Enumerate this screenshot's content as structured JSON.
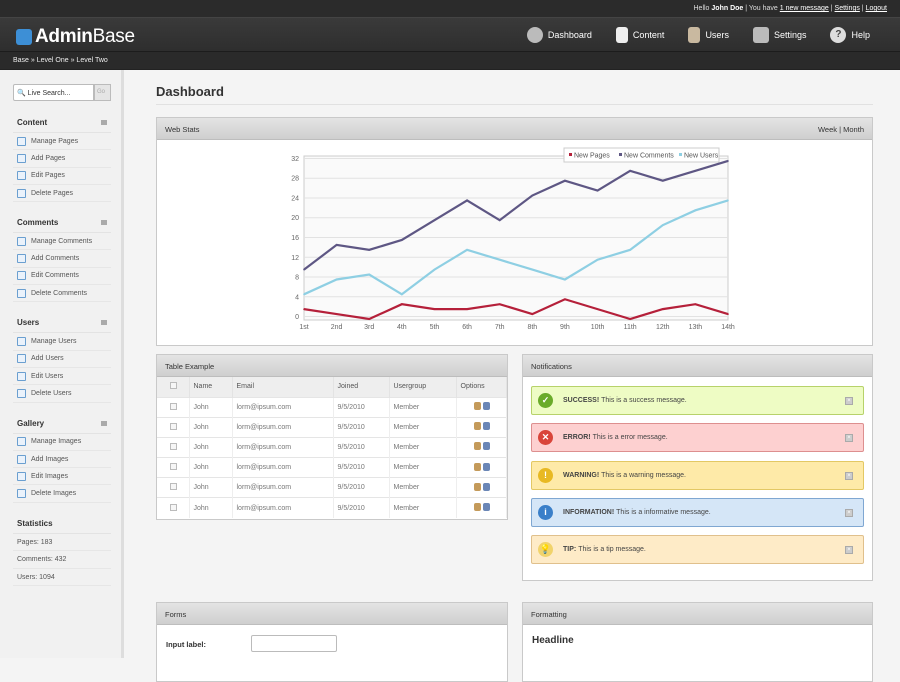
{
  "topbar": {
    "hello": "Hello",
    "user": "John Doe",
    "you_have": "| You have",
    "messages": "1 new message",
    "settings": "Settings",
    "logout": "Logout",
    "sep": "|"
  },
  "logo": {
    "bold": "Admin",
    "rest": "Base"
  },
  "nav": [
    {
      "label": "Dashboard",
      "icon": "gear-icon"
    },
    {
      "label": "Content",
      "icon": "document-icon"
    },
    {
      "label": "Users",
      "icon": "user-icon"
    },
    {
      "label": "Settings",
      "icon": "settings-icon"
    },
    {
      "label": "Help",
      "icon": "help-icon"
    }
  ],
  "breadcrumb": "Base » Level One » Level Two",
  "sidebar": {
    "search": {
      "placeholder": "Live Search...",
      "go": "Go"
    },
    "groups": [
      {
        "title": "Content",
        "items": [
          "Manage Pages",
          "Add Pages",
          "Edit Pages",
          "Delete Pages"
        ]
      },
      {
        "title": "Comments",
        "items": [
          "Manage Comments",
          "Add Comments",
          "Edit Comments",
          "Delete Comments"
        ]
      },
      {
        "title": "Users",
        "items": [
          "Manage Users",
          "Add Users",
          "Edit Users",
          "Delete Users"
        ]
      },
      {
        "title": "Gallery",
        "items": [
          "Manage Images",
          "Add Images",
          "Edit Images",
          "Delete Images"
        ]
      }
    ],
    "statistics": {
      "title": "Statistics",
      "items": [
        "Pages: 183",
        "Comments: 432",
        "Users: 1094"
      ]
    }
  },
  "page_title": "Dashboard",
  "webstats": {
    "title": "Web Stats",
    "week": "Week",
    "month": "Month",
    "sep": "|"
  },
  "chart_data": {
    "type": "line",
    "categories": [
      "1st",
      "2nd",
      "3rd",
      "4th",
      "5th",
      "6th",
      "7th",
      "8th",
      "9th",
      "10th",
      "11th",
      "12th",
      "13th",
      "14th"
    ],
    "series": [
      {
        "name": "New Pages",
        "color": "#b5203a",
        "values": [
          1.5,
          0.5,
          -0.5,
          2.5,
          1.5,
          1.5,
          2.5,
          0.5,
          3.5,
          1.5,
          -0.5,
          1.5,
          2.5,
          0.5
        ]
      },
      {
        "name": "New Comments",
        "color": "#5e5784",
        "values": [
          9.5,
          14.5,
          13.5,
          15.5,
          19.5,
          23.5,
          19.5,
          24.5,
          27.5,
          25.5,
          29.5,
          27.5,
          29.5,
          31.5
        ]
      },
      {
        "name": "New Users",
        "color": "#8ecfe3",
        "values": [
          4.5,
          7.5,
          8.5,
          4.5,
          9.5,
          13.5,
          11.5,
          9.5,
          7.5,
          11.5,
          13.5,
          18.5,
          21.5,
          23.5
        ]
      }
    ],
    "yticks": [
      0,
      4,
      8,
      12,
      16,
      20,
      24,
      28,
      32
    ],
    "ylim": [
      -0.7,
      32.5
    ],
    "grid": true,
    "legend": "top-right"
  },
  "table": {
    "title": "Table Example",
    "headers": [
      "Name",
      "Email",
      "Joined",
      "Usergroup",
      "Options"
    ],
    "rows": [
      [
        "John",
        "lorm@ipsum.com",
        "9/5/2010",
        "Member"
      ],
      [
        "John",
        "lorm@ipsum.com",
        "9/5/2010",
        "Member"
      ],
      [
        "John",
        "lorm@ipsum.com",
        "9/5/2010",
        "Member"
      ],
      [
        "John",
        "lorm@ipsum.com",
        "9/5/2010",
        "Member"
      ],
      [
        "John",
        "lorm@ipsum.com",
        "9/5/2010",
        "Member"
      ],
      [
        "John",
        "lorm@ipsum.com",
        "9/5/2010",
        "Member"
      ]
    ]
  },
  "notifications": {
    "title": "Notifications",
    "items": [
      {
        "type": "success",
        "label": "SUCCESS!",
        "text": "This is a success message.",
        "bg": "#eefcc4",
        "border": "#b7d26a",
        "icon_color": "#6aab2a",
        "glyph": "✓"
      },
      {
        "type": "error",
        "label": "ERROR!",
        "text": "This is a error message.",
        "bg": "#fdd0d0",
        "border": "#dd8f8f",
        "icon_color": "#d9453a",
        "glyph": "✕"
      },
      {
        "type": "warning",
        "label": "WARNING!",
        "text": "This is a warning message.",
        "bg": "#feeaa8",
        "border": "#e3c864",
        "icon_color": "#e8b923",
        "glyph": "!"
      },
      {
        "type": "information",
        "label": "INFORMATION!",
        "text": "This is a informative message.",
        "bg": "#d5e6f7",
        "border": "#7fa7d2",
        "icon_color": "#3a7fc9",
        "glyph": "i"
      },
      {
        "type": "tip",
        "label": "TIP:",
        "text": "This is a tip message.",
        "bg": "#feebc7",
        "border": "#e0c08c",
        "icon_color": "#f1d36b",
        "glyph": "💡"
      }
    ]
  },
  "forms": {
    "title": "Forms",
    "input_label": "Input label:",
    "input_value": ""
  },
  "formatting": {
    "title": "Formatting",
    "headline": "Headline"
  }
}
